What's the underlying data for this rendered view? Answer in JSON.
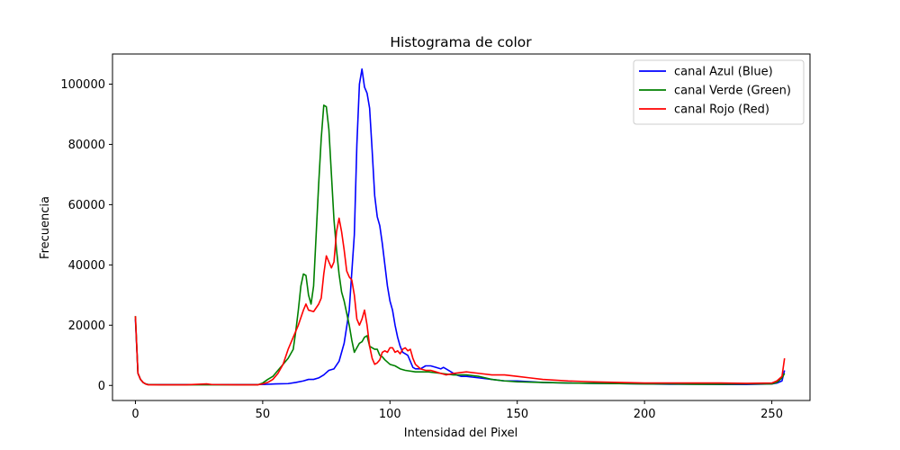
{
  "chart_data": {
    "type": "line",
    "title": "Histograma de color",
    "xlabel": "Intensidad del Pixel",
    "ylabel": "Frecuencia",
    "xlim": [
      -9,
      265
    ],
    "ylim": [
      -5000,
      110000
    ],
    "xticks": [
      0,
      50,
      100,
      150,
      200,
      250
    ],
    "yticks": [
      0,
      20000,
      40000,
      60000,
      80000,
      100000
    ],
    "grid": false,
    "legend_position": "top-right",
    "series": [
      {
        "name": "canal Azul (Blue)",
        "color": "#0000ff",
        "points": [
          [
            0,
            22000
          ],
          [
            1,
            4000
          ],
          [
            2,
            2000
          ],
          [
            3,
            1000
          ],
          [
            4,
            500
          ],
          [
            5,
            300
          ],
          [
            10,
            300
          ],
          [
            20,
            300
          ],
          [
            30,
            300
          ],
          [
            40,
            300
          ],
          [
            50,
            300
          ],
          [
            55,
            500
          ],
          [
            60,
            600
          ],
          [
            63,
            1000
          ],
          [
            66,
            1500
          ],
          [
            68,
            2000
          ],
          [
            70,
            2000
          ],
          [
            72,
            2500
          ],
          [
            74,
            3500
          ],
          [
            76,
            5000
          ],
          [
            78,
            5500
          ],
          [
            80,
            8000
          ],
          [
            82,
            14000
          ],
          [
            84,
            25000
          ],
          [
            86,
            50000
          ],
          [
            87,
            80000
          ],
          [
            88,
            100000
          ],
          [
            89,
            105000
          ],
          [
            90,
            99000
          ],
          [
            91,
            97000
          ],
          [
            92,
            92000
          ],
          [
            93,
            78000
          ],
          [
            94,
            63000
          ],
          [
            95,
            56000
          ],
          [
            96,
            53000
          ],
          [
            97,
            47000
          ],
          [
            98,
            40000
          ],
          [
            99,
            33000
          ],
          [
            100,
            28000
          ],
          [
            101,
            25000
          ],
          [
            102,
            20000
          ],
          [
            103,
            16000
          ],
          [
            104,
            13000
          ],
          [
            105,
            11000
          ],
          [
            106,
            10500
          ],
          [
            107,
            10000
          ],
          [
            108,
            8000
          ],
          [
            109,
            6000
          ],
          [
            110,
            5500
          ],
          [
            112,
            5500
          ],
          [
            114,
            6500
          ],
          [
            116,
            6500
          ],
          [
            118,
            6000
          ],
          [
            120,
            5500
          ],
          [
            121,
            6000
          ],
          [
            122,
            5500
          ],
          [
            124,
            4500
          ],
          [
            126,
            3500
          ],
          [
            128,
            3000
          ],
          [
            130,
            3000
          ],
          [
            135,
            2500
          ],
          [
            140,
            2000
          ],
          [
            145,
            1500
          ],
          [
            150,
            1500
          ],
          [
            160,
            1000
          ],
          [
            170,
            800
          ],
          [
            180,
            700
          ],
          [
            190,
            600
          ],
          [
            200,
            500
          ],
          [
            210,
            400
          ],
          [
            220,
            400
          ],
          [
            230,
            300
          ],
          [
            240,
            300
          ],
          [
            250,
            500
          ],
          [
            252,
            800
          ],
          [
            254,
            1500
          ],
          [
            255,
            5000
          ]
        ]
      },
      {
        "name": "canal Verde (Green)",
        "color": "#008000",
        "points": [
          [
            0,
            23000
          ],
          [
            1,
            4000
          ],
          [
            2,
            2000
          ],
          [
            3,
            1000
          ],
          [
            4,
            500
          ],
          [
            5,
            300
          ],
          [
            10,
            200
          ],
          [
            20,
            200
          ],
          [
            30,
            200
          ],
          [
            40,
            200
          ],
          [
            48,
            200
          ],
          [
            50,
            800
          ],
          [
            52,
            2000
          ],
          [
            54,
            3000
          ],
          [
            56,
            5000
          ],
          [
            58,
            7000
          ],
          [
            60,
            9000
          ],
          [
            62,
            12000
          ],
          [
            63,
            18000
          ],
          [
            64,
            25000
          ],
          [
            65,
            33000
          ],
          [
            66,
            37000
          ],
          [
            67,
            36500
          ],
          [
            68,
            30000
          ],
          [
            69,
            27000
          ],
          [
            70,
            33000
          ],
          [
            71,
            50000
          ],
          [
            72,
            67000
          ],
          [
            73,
            82000
          ],
          [
            74,
            93000
          ],
          [
            75,
            92500
          ],
          [
            76,
            85000
          ],
          [
            77,
            70000
          ],
          [
            78,
            55000
          ],
          [
            79,
            45000
          ],
          [
            80,
            37000
          ],
          [
            81,
            31000
          ],
          [
            82,
            28000
          ],
          [
            83,
            24000
          ],
          [
            84,
            20000
          ],
          [
            85,
            15000
          ],
          [
            86,
            11000
          ],
          [
            87,
            12500
          ],
          [
            88,
            14000
          ],
          [
            89,
            14500
          ],
          [
            90,
            16000
          ],
          [
            91,
            16500
          ],
          [
            92,
            13000
          ],
          [
            93,
            12500
          ],
          [
            94,
            12000
          ],
          [
            95,
            12000
          ],
          [
            96,
            10000
          ],
          [
            97,
            9500
          ],
          [
            98,
            8500
          ],
          [
            100,
            7000
          ],
          [
            102,
            6500
          ],
          [
            104,
            5500
          ],
          [
            106,
            5000
          ],
          [
            110,
            4500
          ],
          [
            115,
            4500
          ],
          [
            120,
            4000
          ],
          [
            125,
            3500
          ],
          [
            130,
            3500
          ],
          [
            135,
            3000
          ],
          [
            140,
            2000
          ],
          [
            145,
            1500
          ],
          [
            150,
            1200
          ],
          [
            160,
            1000
          ],
          [
            170,
            800
          ],
          [
            180,
            700
          ],
          [
            190,
            600
          ],
          [
            200,
            500
          ],
          [
            210,
            500
          ],
          [
            220,
            400
          ],
          [
            230,
            400
          ],
          [
            240,
            500
          ],
          [
            250,
            500
          ],
          [
            252,
            1000
          ],
          [
            254,
            2500
          ],
          [
            255,
            4000
          ]
        ]
      },
      {
        "name": "canal Rojo (Red)",
        "color": "#ff0000",
        "points": [
          [
            0,
            23000
          ],
          [
            1,
            4000
          ],
          [
            2,
            2000
          ],
          [
            3,
            1000
          ],
          [
            4,
            500
          ],
          [
            5,
            200
          ],
          [
            10,
            200
          ],
          [
            20,
            200
          ],
          [
            28,
            500
          ],
          [
            30,
            300
          ],
          [
            40,
            200
          ],
          [
            48,
            200
          ],
          [
            50,
            500
          ],
          [
            52,
            1000
          ],
          [
            54,
            2000
          ],
          [
            56,
            4000
          ],
          [
            58,
            7000
          ],
          [
            60,
            12000
          ],
          [
            62,
            16000
          ],
          [
            64,
            20000
          ],
          [
            66,
            25000
          ],
          [
            67,
            27000
          ],
          [
            68,
            25000
          ],
          [
            70,
            24500
          ],
          [
            72,
            27000
          ],
          [
            73,
            29000
          ],
          [
            74,
            37000
          ],
          [
            75,
            43000
          ],
          [
            76,
            41000
          ],
          [
            77,
            39000
          ],
          [
            78,
            41000
          ],
          [
            79,
            51000
          ],
          [
            80,
            55500
          ],
          [
            81,
            51000
          ],
          [
            82,
            45000
          ],
          [
            83,
            38000
          ],
          [
            84,
            36000
          ],
          [
            85,
            35000
          ],
          [
            86,
            30000
          ],
          [
            87,
            22000
          ],
          [
            88,
            20000
          ],
          [
            89,
            22000
          ],
          [
            90,
            25000
          ],
          [
            91,
            20000
          ],
          [
            92,
            13000
          ],
          [
            93,
            9000
          ],
          [
            94,
            7000
          ],
          [
            95,
            7500
          ],
          [
            96,
            8500
          ],
          [
            97,
            11000
          ],
          [
            98,
            11500
          ],
          [
            99,
            11000
          ],
          [
            100,
            12500
          ],
          [
            101,
            12500
          ],
          [
            102,
            11000
          ],
          [
            103,
            11500
          ],
          [
            104,
            10500
          ],
          [
            105,
            12000
          ],
          [
            106,
            12500
          ],
          [
            107,
            11500
          ],
          [
            108,
            12000
          ],
          [
            109,
            9000
          ],
          [
            110,
            7000
          ],
          [
            112,
            5500
          ],
          [
            114,
            5000
          ],
          [
            116,
            5000
          ],
          [
            118,
            4500
          ],
          [
            120,
            4000
          ],
          [
            122,
            3500
          ],
          [
            125,
            4000
          ],
          [
            130,
            4500
          ],
          [
            135,
            4000
          ],
          [
            140,
            3500
          ],
          [
            145,
            3500
          ],
          [
            150,
            3000
          ],
          [
            155,
            2500
          ],
          [
            160,
            2000
          ],
          [
            170,
            1500
          ],
          [
            180,
            1200
          ],
          [
            190,
            1000
          ],
          [
            200,
            800
          ],
          [
            210,
            800
          ],
          [
            220,
            800
          ],
          [
            230,
            800
          ],
          [
            240,
            700
          ],
          [
            250,
            800
          ],
          [
            252,
            1500
          ],
          [
            254,
            3000
          ],
          [
            255,
            9000
          ]
        ]
      }
    ]
  }
}
